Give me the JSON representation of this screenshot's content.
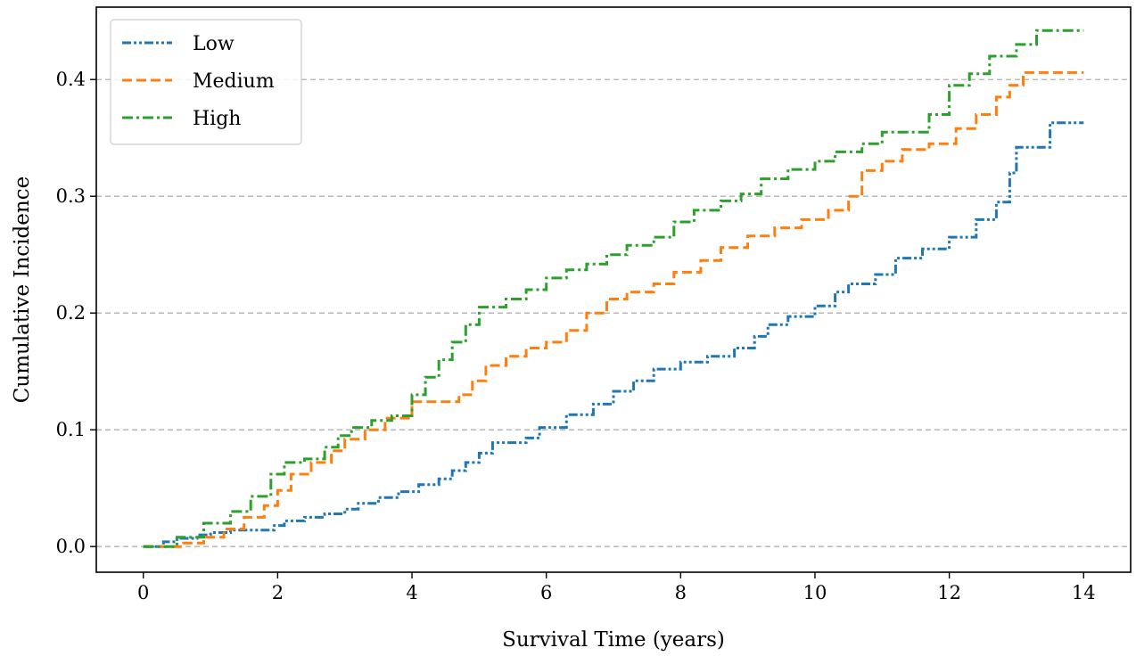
{
  "chart_data": {
    "type": "line",
    "step": true,
    "xlabel": "Survival Time (years)",
    "ylabel": "Cumulative Incidence",
    "xlim": [
      -0.7,
      14.7
    ],
    "ylim": [
      -0.022,
      0.462
    ],
    "xticks": [
      0,
      2,
      4,
      6,
      8,
      10,
      12,
      14
    ],
    "xtick_labels": [
      "0",
      "2",
      "4",
      "6",
      "8",
      "10",
      "12",
      "14"
    ],
    "yticks": [
      0.0,
      0.1,
      0.2,
      0.3,
      0.4
    ],
    "ytick_labels": [
      "0.0",
      "0.1",
      "0.2",
      "0.3",
      "0.4"
    ],
    "grid": "horizontal dashed",
    "legend_position": "upper-left",
    "series": [
      {
        "name": "Low",
        "color": "#1f77b4",
        "dash": "dash-dot-dot",
        "x": [
          0,
          0.3,
          0.5,
          0.8,
          1.0,
          1.3,
          1.6,
          1.95,
          2.1,
          2.4,
          2.7,
          3.0,
          3.2,
          3.5,
          3.8,
          4.1,
          4.4,
          4.6,
          4.8,
          5.0,
          5.2,
          5.5,
          5.7,
          5.9,
          6.3,
          6.7,
          7.0,
          7.3,
          7.6,
          8.0,
          8.4,
          8.8,
          9.1,
          9.3,
          9.6,
          10.0,
          10.3,
          10.5,
          10.9,
          11.2,
          11.6,
          12.0,
          12.4,
          12.7,
          12.9,
          13.0,
          13.4,
          13.5,
          14.0
        ],
        "y": [
          0.0,
          0.004,
          0.007,
          0.01,
          0.012,
          0.014,
          0.014,
          0.018,
          0.022,
          0.025,
          0.028,
          0.032,
          0.037,
          0.042,
          0.047,
          0.053,
          0.058,
          0.065,
          0.072,
          0.08,
          0.089,
          0.089,
          0.093,
          0.102,
          0.113,
          0.122,
          0.133,
          0.142,
          0.152,
          0.158,
          0.163,
          0.17,
          0.18,
          0.19,
          0.197,
          0.206,
          0.218,
          0.225,
          0.233,
          0.247,
          0.255,
          0.265,
          0.28,
          0.295,
          0.32,
          0.342,
          0.342,
          0.363,
          0.363
        ]
      },
      {
        "name": "Medium",
        "color": "#ff7f0e",
        "dash": "dashed",
        "x": [
          0,
          0.6,
          0.9,
          1.2,
          1.5,
          1.8,
          2.0,
          2.2,
          2.5,
          2.8,
          3.0,
          3.3,
          3.6,
          4.0,
          4.4,
          4.7,
          4.9,
          5.1,
          5.4,
          5.7,
          6.0,
          6.3,
          6.6,
          6.9,
          7.2,
          7.6,
          7.9,
          8.3,
          8.6,
          9.0,
          9.4,
          9.8,
          10.2,
          10.5,
          10.7,
          11.0,
          11.3,
          11.7,
          12.1,
          12.4,
          12.7,
          12.9,
          13.1,
          14.0
        ],
        "y": [
          0.0,
          0.003,
          0.008,
          0.015,
          0.025,
          0.035,
          0.048,
          0.062,
          0.072,
          0.082,
          0.092,
          0.1,
          0.11,
          0.124,
          0.124,
          0.13,
          0.142,
          0.155,
          0.163,
          0.17,
          0.175,
          0.185,
          0.2,
          0.212,
          0.218,
          0.225,
          0.235,
          0.245,
          0.256,
          0.266,
          0.273,
          0.28,
          0.288,
          0.3,
          0.322,
          0.33,
          0.34,
          0.345,
          0.358,
          0.37,
          0.385,
          0.395,
          0.406,
          0.406
        ]
      },
      {
        "name": "High",
        "color": "#2ca02c",
        "dash": "dash-dot",
        "x": [
          0,
          0.5,
          0.9,
          1.3,
          1.6,
          1.9,
          2.1,
          2.4,
          2.7,
          2.9,
          3.1,
          3.4,
          3.7,
          4.0,
          4.2,
          4.4,
          4.6,
          4.8,
          5.0,
          5.4,
          5.7,
          6.0,
          6.3,
          6.6,
          6.9,
          7.2,
          7.6,
          7.9,
          8.2,
          8.6,
          8.9,
          9.2,
          9.6,
          10.0,
          10.3,
          10.7,
          11.0,
          11.5,
          11.7,
          12.0,
          12.3,
          12.6,
          13.0,
          13.3,
          14.0
        ],
        "y": [
          0.0,
          0.008,
          0.02,
          0.03,
          0.043,
          0.062,
          0.072,
          0.075,
          0.085,
          0.095,
          0.102,
          0.108,
          0.112,
          0.13,
          0.145,
          0.16,
          0.175,
          0.19,
          0.205,
          0.212,
          0.22,
          0.23,
          0.237,
          0.242,
          0.25,
          0.258,
          0.265,
          0.278,
          0.288,
          0.296,
          0.302,
          0.315,
          0.323,
          0.33,
          0.338,
          0.345,
          0.355,
          0.355,
          0.37,
          0.395,
          0.405,
          0.42,
          0.43,
          0.442,
          0.442
        ]
      }
    ]
  }
}
